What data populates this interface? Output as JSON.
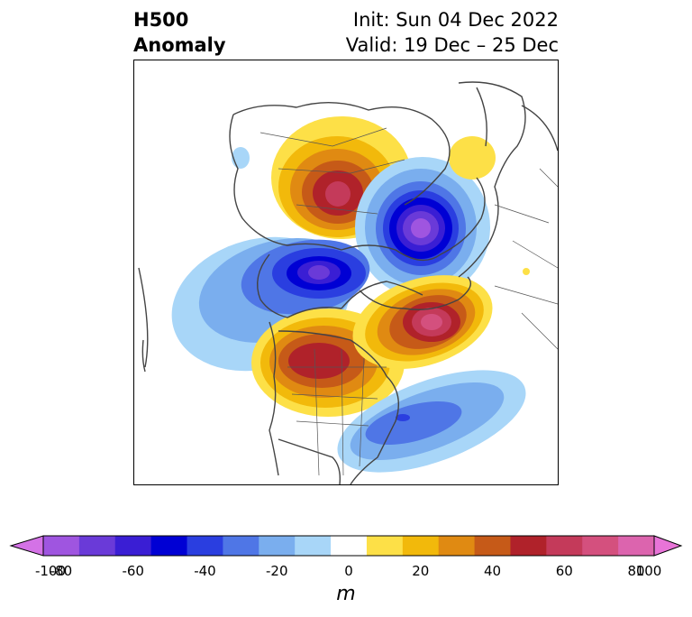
{
  "header": {
    "title_line1": "H500",
    "title_line2": "Anomaly",
    "init_text": "Init: Sun 04 Dec 2022",
    "valid_text": "Valid: 19 Dec – 25 Dec"
  },
  "colorbar": {
    "unit": "m",
    "ticks": [
      "-100",
      "-80",
      "-60",
      "-40",
      "-20",
      "0",
      "20",
      "40",
      "60",
      "80",
      "100"
    ],
    "bins": [
      {
        "color": "#9f55e0"
      },
      {
        "color": "#6a3ad8"
      },
      {
        "color": "#3a1ed4"
      },
      {
        "color": "#0000d4"
      },
      {
        "color": "#2a3ee0"
      },
      {
        "color": "#4f76e6"
      },
      {
        "color": "#7aaeee"
      },
      {
        "color": "#a8d6f8"
      },
      {
        "color": "#ffffff"
      },
      {
        "color": "#fde047"
      },
      {
        "color": "#f2b90b"
      },
      {
        "color": "#e08a12"
      },
      {
        "color": "#c65a18"
      },
      {
        "color": "#b0222a"
      },
      {
        "color": "#c43a5a"
      },
      {
        "color": "#d4507e"
      },
      {
        "color": "#dc64ae"
      }
    ],
    "under_color": "#d472e6",
    "over_color": "#e874d8"
  },
  "map": {
    "anomalies": [
      {
        "name": "ridge-siberia",
        "sign": "positive",
        "peak": 60
      },
      {
        "name": "trough-europe",
        "sign": "negative",
        "peak": -90
      },
      {
        "name": "trough-north-pacific",
        "sign": "negative",
        "peak": -80
      },
      {
        "name": "ridge-canada",
        "sign": "positive",
        "peak": 60
      },
      {
        "name": "ridge-greenland",
        "sign": "positive",
        "peak": 80
      },
      {
        "name": "trough-west-atlantic",
        "sign": "negative",
        "peak": -50
      },
      {
        "name": "ridge-scandinavia",
        "sign": "positive",
        "peak": 20
      }
    ]
  }
}
